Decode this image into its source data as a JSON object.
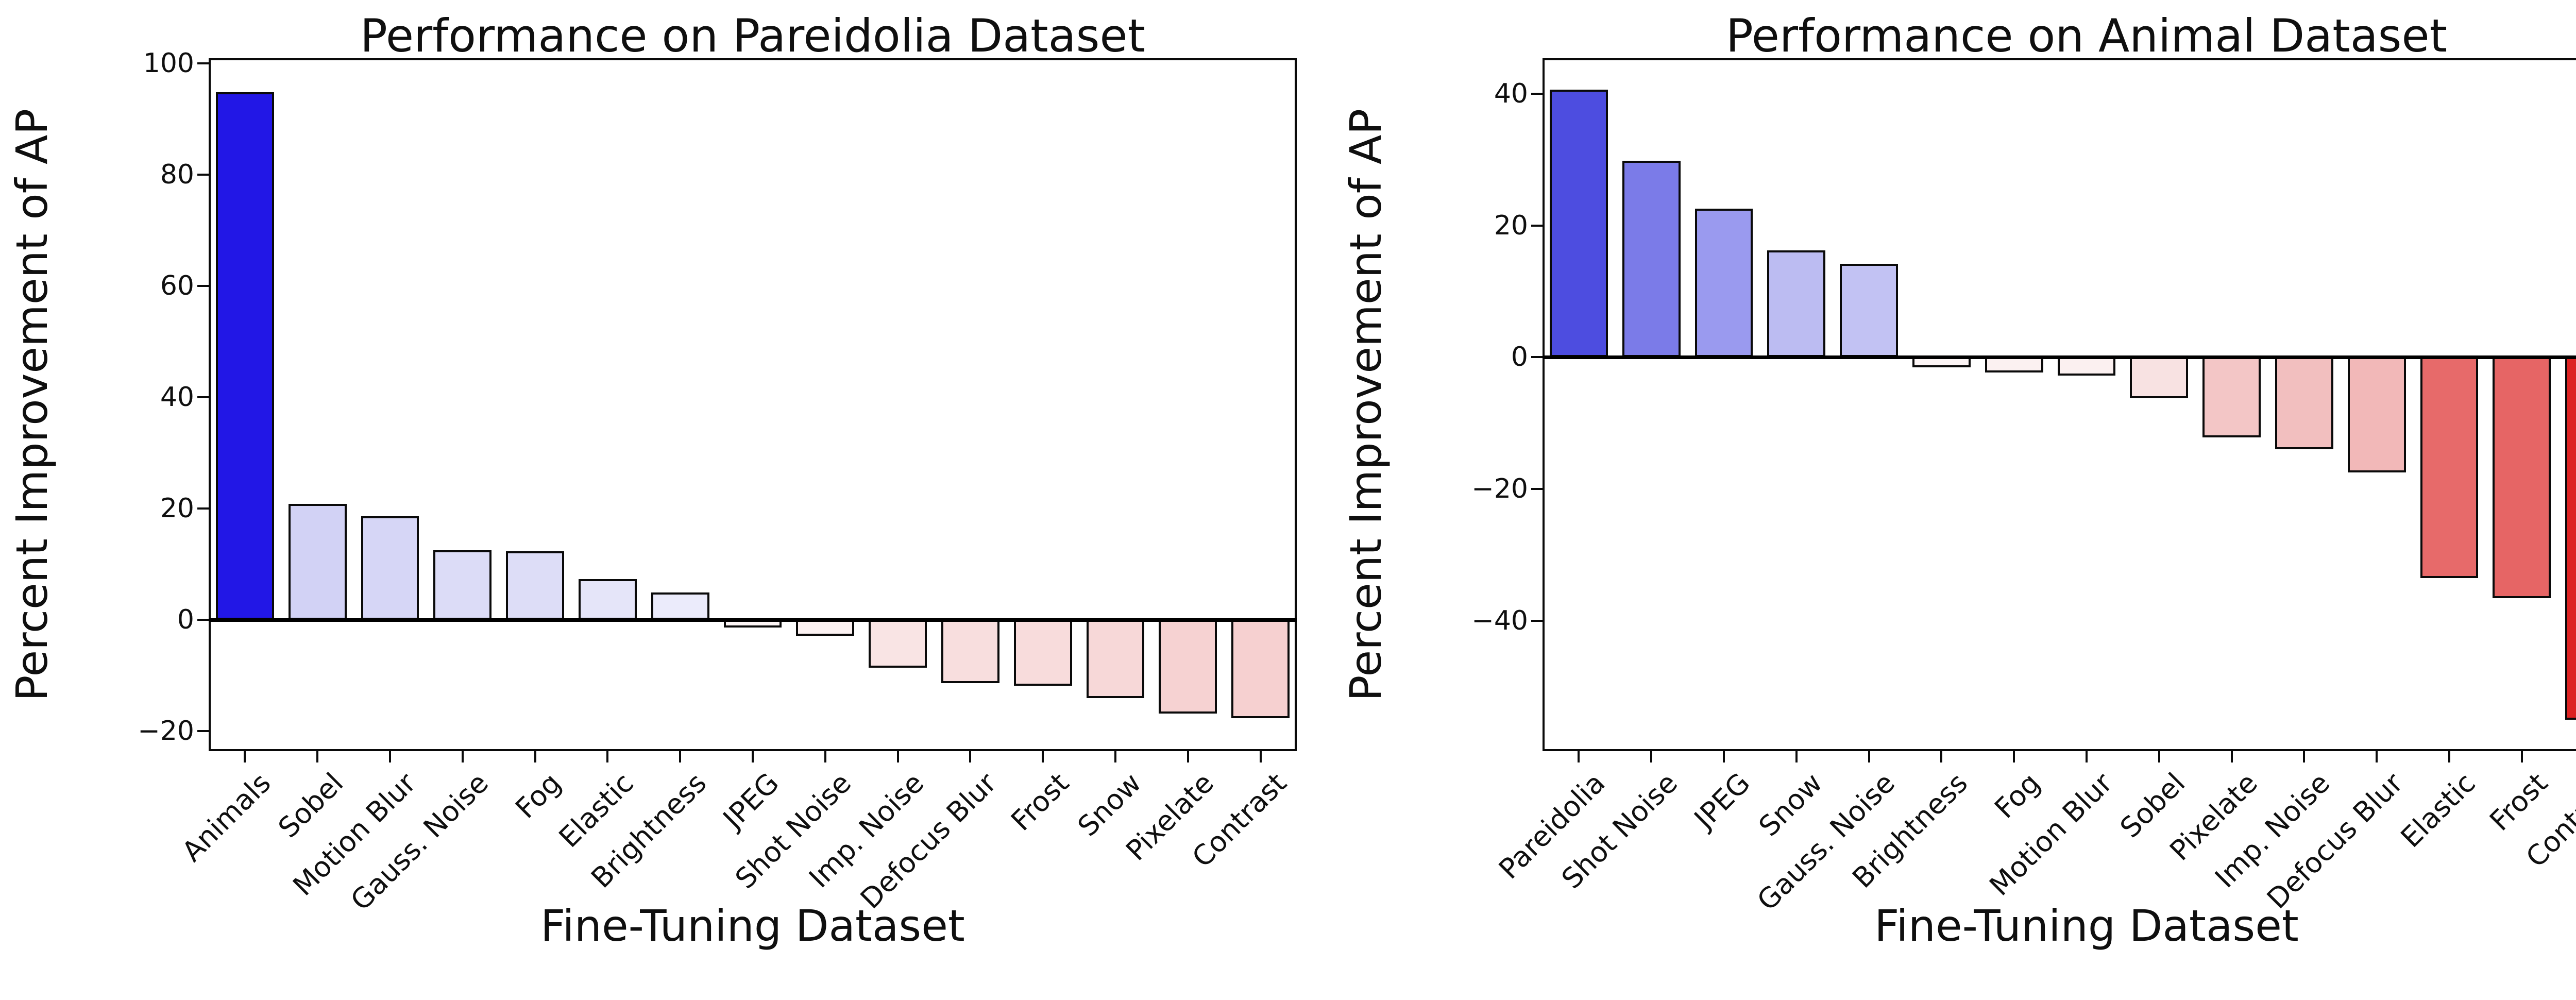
{
  "figure": {
    "background": "#ffffff",
    "axis_color": "#0a0a0a",
    "zero_line_color": "#000000"
  },
  "chart_data": [
    {
      "type": "bar",
      "title": "Performance on Pareidolia Dataset",
      "xlabel": "Fine-Tuning Dataset",
      "ylabel": "Percent Improvement of AP",
      "categories": [
        "Animals",
        "Sobel",
        "Motion Blur",
        "Gauss. Noise",
        "Fog",
        "Elastic",
        "Brightness",
        "JPEG",
        "Shot Noise",
        "Imp. Noise",
        "Defocus Blur",
        "Frost",
        "Snow",
        "Pixelate",
        "Contrast"
      ],
      "values": [
        94.8,
        20.8,
        18.6,
        12.5,
        12.3,
        7.3,
        4.9,
        -1.4,
        -2.9,
        -8.6,
        -11.4,
        -11.8,
        -14.1,
        -16.8,
        -17.7
      ],
      "bar_colors": [
        "#2217E6",
        "#D2D2F5",
        "#D6D6F6",
        "#DCDCF7",
        "#DDDDF7",
        "#E5E5F9",
        "#EBEBFB",
        "#FDF6F6",
        "#FCF2F2",
        "#F9E4E4",
        "#F8DEDE",
        "#F8DCDC",
        "#F7D8D8",
        "#F6D2D2",
        "#F6D0D0"
      ],
      "bar_edge_color": "#0a0a0a",
      "yticks": [
        100,
        80,
        60,
        40,
        20,
        0,
        -20
      ],
      "ytick_labels": [
        "100",
        "80",
        "60",
        "40",
        "20",
        "0",
        "−20"
      ],
      "ylim": [
        -23.6,
        100.9
      ],
      "grid": false,
      "legend": null,
      "zero_line": true
    },
    {
      "type": "bar",
      "title": "Performance on Animal Dataset",
      "xlabel": "Fine-Tuning Dataset",
      "ylabel": "Percent Improvement of AP",
      "categories": [
        "Pareidolia",
        "Shot Noise",
        "JPEG",
        "Snow",
        "Gauss. Noise",
        "Brightness",
        "Fog",
        "Motion Blur",
        "Sobel",
        "Pixelate",
        "Imp. Noise",
        "Defocus Blur",
        "Elastic",
        "Frost",
        "Contrast"
      ],
      "values": [
        40.6,
        29.8,
        22.6,
        16.2,
        14.2,
        -1.5,
        -2.3,
        -2.8,
        -6.2,
        -12.2,
        -14.0,
        -17.5,
        -33.5,
        -36.6,
        -55.0
      ],
      "bar_colors": [
        "#4D4DE0",
        "#7B7BE8",
        "#9A9AEF",
        "#BCBCF2",
        "#C2C2F3",
        "#FCF5F5",
        "#FBF1F1",
        "#FBF0F0",
        "#F8E2E2",
        "#F3C6C6",
        "#F2BFBF",
        "#F2B8B8",
        "#E76A6A",
        "#E66565",
        "#DD2222"
      ],
      "bar_edge_color": "#0a0a0a",
      "yticks": [
        40,
        20,
        0,
        -20,
        -40
      ],
      "ytick_labels": [
        "40",
        "20",
        "0",
        "−20",
        "−40"
      ],
      "ylim": [
        -59.8,
        45.4
      ],
      "grid": false,
      "legend": null,
      "zero_line": true
    }
  ]
}
